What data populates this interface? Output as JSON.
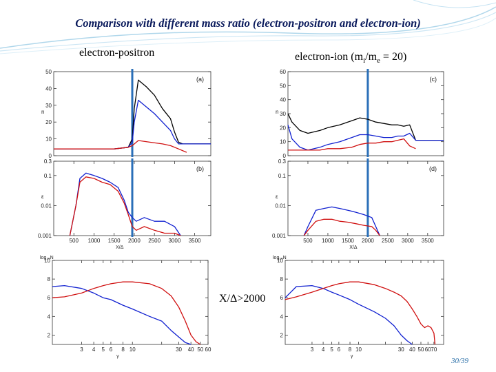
{
  "header": {
    "title": "Comparison with different mass ratio (electron-positron and electron-ion)"
  },
  "captions": {
    "left": "electron-positron",
    "right_prefix": "electron-ion (m",
    "right_sub1": "i",
    "right_mid": "/m",
    "right_sub2": "e",
    "right_suffix": " = 20)",
    "spectrum_region": "X/Δ>2000"
  },
  "slide_number": "30/39",
  "colors": {
    "ions_or_positrons": "#d01010",
    "electrons": "#1020d0",
    "total": "#000000",
    "marker": "#2a6fb8",
    "title": "#0a1a5c"
  },
  "chart_data": [
    {
      "type": "line",
      "panel_label": "(a)",
      "ylabel": "n",
      "xlim": [
        0,
        3900
      ],
      "ylim": [
        0,
        50
      ],
      "yticks": [
        0,
        10,
        20,
        30,
        40,
        50
      ],
      "grid": false,
      "marker_x": 1950,
      "series": [
        {
          "color": "#000000",
          "x": [
            0,
            600,
            1000,
            1500,
            1850,
            1950,
            2000,
            2100,
            2300,
            2500,
            2700,
            2900,
            3000,
            3100,
            3200,
            3900
          ],
          "y": [
            4,
            4,
            4,
            4,
            5,
            10,
            28,
            45,
            41,
            36,
            28,
            22,
            14,
            8,
            7,
            7
          ]
        },
        {
          "color": "#1020d0",
          "x": [
            0,
            600,
            1000,
            1500,
            1850,
            1950,
            2000,
            2100,
            2300,
            2500,
            2700,
            2900,
            3000,
            3100,
            3900
          ],
          "y": [
            4,
            4,
            4,
            4,
            5,
            8,
            20,
            33,
            29,
            25,
            20,
            15,
            10,
            7,
            7
          ]
        },
        {
          "color": "#d01010",
          "x": [
            0,
            600,
            1000,
            1500,
            1850,
            1950,
            2100,
            2400,
            2700,
            2900,
            3100,
            3300
          ],
          "y": [
            4,
            4,
            4,
            4,
            5,
            6,
            9,
            8,
            7,
            6,
            4,
            2
          ]
        }
      ]
    },
    {
      "type": "line",
      "log_y": true,
      "panel_label": "(b)",
      "ylabel": "ε",
      "xlim": [
        0,
        3900
      ],
      "ylim": [
        0.001,
        0.3
      ],
      "yticks": [
        0.001,
        0.01,
        0.1,
        0.3
      ],
      "ytick_labels": [
        "0.001",
        "0.01",
        "0.1",
        "0.3"
      ],
      "xticks": [
        500,
        1000,
        1500,
        2000,
        2500,
        3000,
        3500
      ],
      "xlabel": "X/Δ",
      "marker_x": 1950,
      "series": [
        {
          "color": "#1020d0",
          "x": [
            400,
            550,
            650,
            800,
            1000,
            1200,
            1400,
            1600,
            1750,
            1850,
            1950,
            2050,
            2250,
            2500,
            2750,
            3000,
            3150
          ],
          "y": [
            0.001,
            0.01,
            0.08,
            0.12,
            0.1,
            0.08,
            0.06,
            0.04,
            0.015,
            0.006,
            0.004,
            0.003,
            0.004,
            0.003,
            0.003,
            0.002,
            0.001
          ]
        },
        {
          "color": "#d01010",
          "x": [
            400,
            550,
            650,
            800,
            1000,
            1200,
            1400,
            1600,
            1750,
            1850,
            1950,
            2050,
            2250,
            2500,
            2750,
            3000,
            3150
          ],
          "y": [
            0.001,
            0.01,
            0.06,
            0.09,
            0.08,
            0.06,
            0.05,
            0.03,
            0.012,
            0.005,
            0.002,
            0.0015,
            0.002,
            0.0015,
            0.0012,
            0.0012,
            0.001
          ]
        }
      ]
    },
    {
      "type": "line",
      "panel_label": "(c)",
      "ylabel": "n",
      "xlim": [
        0,
        3900
      ],
      "ylim": [
        0,
        60
      ],
      "yticks": [
        0,
        10,
        20,
        30,
        40,
        50,
        60
      ],
      "marker_x": 2000,
      "series": [
        {
          "color": "#000000",
          "x": [
            0,
            100,
            300,
            500,
            800,
            1000,
            1300,
            1600,
            1800,
            2000,
            2200,
            2400,
            2600,
            2750,
            2900,
            3050,
            3200,
            3900
          ],
          "y": [
            30,
            24,
            18,
            16,
            18,
            20,
            22,
            25,
            27,
            26,
            24,
            23,
            22,
            22,
            21,
            22,
            11,
            11
          ]
        },
        {
          "color": "#1020d0",
          "x": [
            0,
            100,
            300,
            500,
            800,
            1000,
            1300,
            1600,
            1800,
            2000,
            2200,
            2400,
            2600,
            2750,
            2900,
            3050,
            3200,
            3900
          ],
          "y": [
            22,
            12,
            6,
            4,
            6,
            8,
            10,
            13,
            15,
            15,
            14,
            13,
            13,
            14,
            14,
            16,
            11,
            11
          ]
        },
        {
          "color": "#d01010",
          "x": [
            0,
            100,
            300,
            500,
            800,
            1000,
            1300,
            1600,
            1800,
            2000,
            2200,
            2400,
            2600,
            2750,
            2900,
            3050,
            3200
          ],
          "y": [
            4,
            4,
            4,
            4,
            4,
            5,
            5,
            6,
            8,
            9,
            9,
            10,
            10,
            11,
            12,
            7,
            5
          ]
        }
      ]
    },
    {
      "type": "line",
      "log_y": true,
      "panel_label": "(d)",
      "ylabel": "ε",
      "xlim": [
        0,
        3900
      ],
      "ylim": [
        0.001,
        0.3
      ],
      "yticks": [
        0.001,
        0.01,
        0.1,
        0.3
      ],
      "ytick_labels": [
        "0.001",
        "0.01",
        "0.1",
        "0.3"
      ],
      "xticks": [
        500,
        1000,
        1500,
        2000,
        2500,
        3000,
        3500
      ],
      "xlabel": "X/Δ",
      "marker_x": 2000,
      "series": [
        {
          "color": "#1020d0",
          "x": [
            400,
            500,
            700,
            900,
            1100,
            1300,
            1500,
            1700,
            1900,
            2100,
            2200,
            2300
          ],
          "y": [
            0.001,
            0.002,
            0.007,
            0.008,
            0.009,
            0.008,
            0.007,
            0.006,
            0.005,
            0.004,
            0.002,
            0.001
          ]
        },
        {
          "color": "#d01010",
          "x": [
            400,
            500,
            700,
            900,
            1100,
            1300,
            1500,
            1700,
            1900,
            2100,
            2200,
            2300
          ],
          "y": [
            0.001,
            0.0015,
            0.003,
            0.0035,
            0.0035,
            0.003,
            0.0028,
            0.0025,
            0.0022,
            0.002,
            0.0015,
            0.001
          ]
        }
      ]
    },
    {
      "type": "line",
      "ylabel": "log₁₀N",
      "xlabel": "γ",
      "xlim": [
        1.5,
        60
      ],
      "ylim": [
        1,
        10
      ],
      "log_x": true,
      "yticks": [
        2,
        4,
        6,
        8,
        10
      ],
      "xticks": [
        3,
        4,
        5,
        6,
        8,
        10,
        20,
        30,
        40,
        50,
        60
      ],
      "xtick_labels": [
        "3",
        "4",
        "5",
        "6",
        "8",
        "10",
        "",
        "30",
        "40",
        "50",
        "60"
      ],
      "series": [
        {
          "color": "#1020d0",
          "x": [
            1.5,
            2,
            3,
            4,
            5,
            6,
            8,
            10,
            15,
            20,
            25,
            30,
            35,
            40
          ],
          "y": [
            7.2,
            7.3,
            7.0,
            6.5,
            6.0,
            5.8,
            5.2,
            4.8,
            4.0,
            3.5,
            2.5,
            1.8,
            1.2,
            1.0
          ]
        },
        {
          "color": "#d01010",
          "x": [
            1.5,
            2,
            3,
            4,
            5,
            6,
            8,
            10,
            15,
            20,
            25,
            30,
            35,
            40,
            45,
            50
          ],
          "y": [
            6.0,
            6.1,
            6.5,
            7.0,
            7.3,
            7.5,
            7.7,
            7.7,
            7.5,
            7.0,
            6.2,
            5.0,
            3.5,
            2.0,
            1.3,
            1.0
          ]
        }
      ]
    },
    {
      "type": "line",
      "ylabel": "log₁₀N",
      "xlabel": "γ",
      "xlim": [
        1.5,
        90
      ],
      "ylim": [
        1,
        10
      ],
      "log_x": true,
      "yticks": [
        2,
        4,
        6,
        8,
        10
      ],
      "xticks": [
        3,
        4,
        5,
        6,
        8,
        10,
        20,
        30,
        40,
        50,
        60,
        70
      ],
      "xtick_labels": [
        "3",
        "4",
        "5",
        "6",
        "8",
        "10",
        "",
        "30",
        "40",
        "50",
        "60",
        "70"
      ],
      "series": [
        {
          "color": "#1020d0",
          "x": [
            1.5,
            2,
            3,
            4,
            5,
            6,
            8,
            10,
            15,
            20,
            25,
            30,
            35,
            40
          ],
          "y": [
            6.0,
            7.2,
            7.3,
            7.0,
            6.6,
            6.3,
            5.8,
            5.3,
            4.5,
            3.8,
            3.0,
            2.0,
            1.4,
            1.0
          ]
        },
        {
          "color": "#d01010",
          "x": [
            1.5,
            2,
            3,
            4,
            5,
            6,
            8,
            10,
            15,
            20,
            25,
            30,
            35,
            40,
            45,
            50,
            55,
            60,
            65,
            70,
            72
          ],
          "y": [
            5.8,
            6.1,
            6.6,
            7.0,
            7.3,
            7.5,
            7.7,
            7.7,
            7.4,
            7.0,
            6.6,
            6.2,
            5.6,
            4.8,
            4.0,
            3.2,
            2.8,
            3.0,
            2.8,
            2.2,
            1.0
          ]
        }
      ]
    }
  ]
}
